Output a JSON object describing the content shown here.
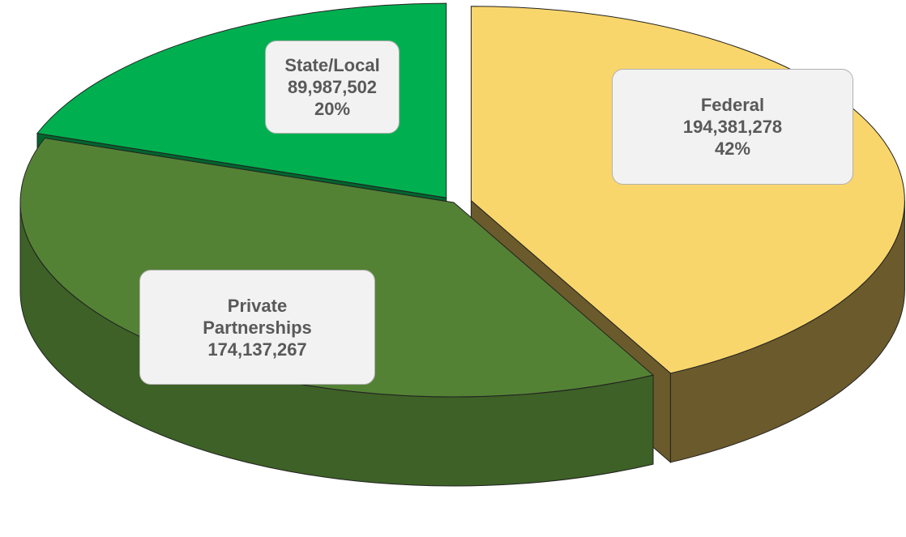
{
  "chart_data": {
    "type": "pie",
    "categories": [
      "Federal",
      "Private Partnerships",
      "State/Local"
    ],
    "values": [
      194381278,
      174137267,
      89987502
    ],
    "value_labels": [
      "194,381,278",
      "174,137,267",
      "89,987,502"
    ],
    "percent_labels": [
      "42%",
      null,
      "20%"
    ],
    "colors": [
      "#f9d66b",
      "#548235",
      "#00b050"
    ],
    "side_colors": [
      "#6b5a2b",
      "#3d6126",
      "#00642d"
    ]
  }
}
